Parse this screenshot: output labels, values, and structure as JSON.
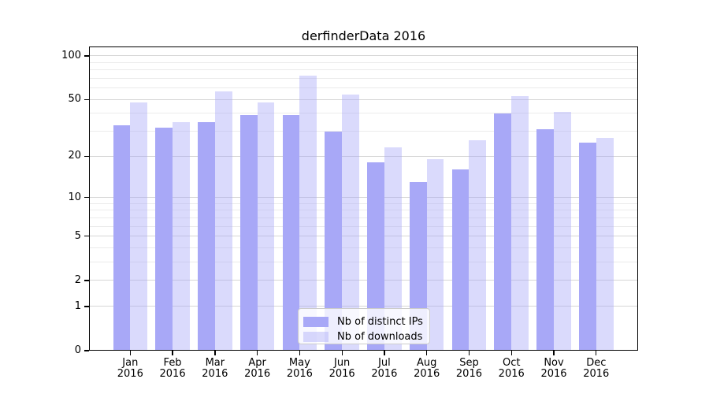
{
  "title": "derfinderData 2016",
  "chart_data": {
    "type": "bar",
    "title": "derfinderData 2016",
    "xlabel": "",
    "ylabel": "",
    "categories": [
      "Jan 2016",
      "Feb 2016",
      "Mar 2016",
      "Apr 2016",
      "May 2016",
      "Jun 2016",
      "Jul 2016",
      "Aug 2016",
      "Sep 2016",
      "Oct 2016",
      "Nov 2016",
      "Dec 2016"
    ],
    "x_tick_months": [
      "Jan",
      "Feb",
      "Mar",
      "Apr",
      "May",
      "Jun",
      "Jul",
      "Aug",
      "Sep",
      "Oct",
      "Nov",
      "Dec"
    ],
    "x_tick_year": "2016",
    "series": [
      {
        "name": "Nb of distinct IPs",
        "color": "#a8a8f7",
        "alpha": 1,
        "values": [
          33,
          32,
          35,
          39,
          39,
          30,
          18,
          13,
          16,
          40,
          31,
          25
        ]
      },
      {
        "name": "Nb of downloads",
        "color": "#a8a8f7",
        "alpha": 0.42,
        "values": [
          48,
          35,
          57,
          48,
          73,
          54,
          23,
          19,
          26,
          53,
          41,
          27
        ]
      }
    ],
    "yscale": "log1p",
    "y_major_ticks": [
      0,
      1,
      2,
      5,
      10,
      20,
      50,
      100
    ],
    "y_tick_labels": [
      "0",
      "1",
      "2",
      "5",
      "10",
      "20",
      "50",
      "100"
    ],
    "y_minor_gridlines": [
      3,
      4,
      6,
      7,
      8,
      9,
      30,
      40,
      60,
      70,
      80,
      90
    ],
    "ylim": [
      0,
      116
    ],
    "grid": true,
    "legend_position": "lower-center",
    "legend_entries": [
      "Nb of distinct IPs",
      "Nb of downloads"
    ]
  },
  "colors": {
    "background": "#ffffff",
    "frame": "#000000",
    "major_grid": "#d6d6d6",
    "minor_grid": "#ebebeb",
    "bar_ips": "#a8a8f7",
    "bar_downloads_effective": "#d9d9fb",
    "legend_border": "#cccccc"
  }
}
